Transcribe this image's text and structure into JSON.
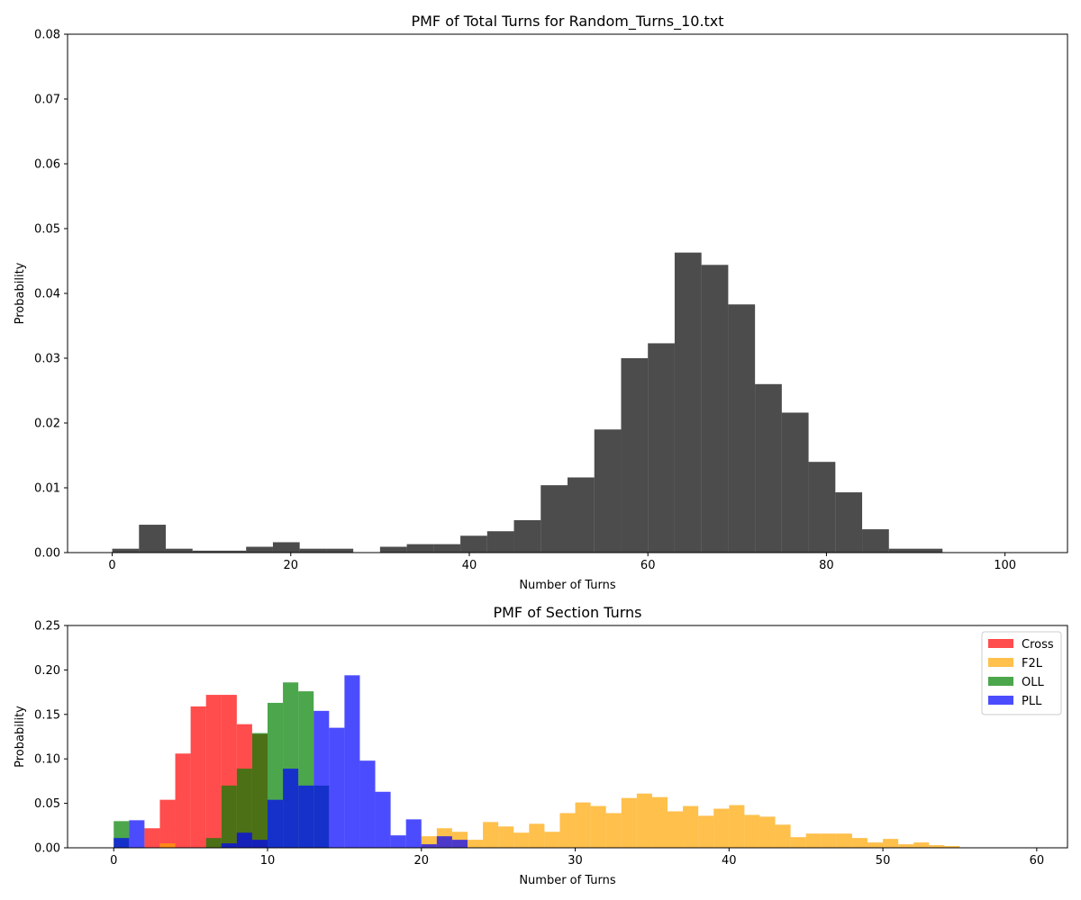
{
  "chart_data": [
    {
      "type": "bar",
      "title": "PMF of Total Turns for Random_Turns_10.txt",
      "xlabel": "Number of Turns",
      "ylabel": "Probability",
      "xlim": [
        -5,
        107
      ],
      "ylim": [
        0,
        0.08
      ],
      "xticks": [
        0,
        20,
        40,
        60,
        80,
        100
      ],
      "yticks": [
        0.0,
        0.01,
        0.02,
        0.03,
        0.04,
        0.05,
        0.06,
        0.07,
        0.08
      ],
      "grid": false,
      "series": [
        {
          "color": "#000000",
          "opacity": 0.7,
          "bin_width": 3,
          "bins": [
            [
              0,
              0.0006
            ],
            [
              3,
              0.0043
            ],
            [
              6,
              0.0006
            ],
            [
              9,
              0.0003
            ],
            [
              12,
              0.0003
            ],
            [
              15,
              0.0009
            ],
            [
              18,
              0.0016
            ],
            [
              21,
              0.0006
            ],
            [
              24,
              0.0006
            ],
            [
              27,
              0.0
            ],
            [
              30,
              0.0009
            ],
            [
              33,
              0.0013
            ],
            [
              36,
              0.0013
            ],
            [
              39,
              0.0026
            ],
            [
              42,
              0.0033
            ],
            [
              45,
              0.005
            ],
            [
              48,
              0.0104
            ],
            [
              51,
              0.0116
            ],
            [
              54,
              0.019
            ],
            [
              57,
              0.03
            ],
            [
              60,
              0.0323
            ],
            [
              63,
              0.0463
            ],
            [
              66,
              0.0444
            ],
            [
              69,
              0.0383
            ],
            [
              72,
              0.026
            ],
            [
              75,
              0.0216
            ],
            [
              78,
              0.014
            ],
            [
              81,
              0.0093
            ],
            [
              84,
              0.0036
            ],
            [
              87,
              0.0006
            ],
            [
              90,
              0.0006
            ]
          ]
        }
      ]
    },
    {
      "type": "bar",
      "title": "PMF of Section Turns",
      "xlabel": "Number of Turns",
      "ylabel": "Probability",
      "xlim": [
        -3,
        62
      ],
      "ylim": [
        0,
        0.25
      ],
      "xticks": [
        0,
        10,
        20,
        30,
        40,
        50,
        60
      ],
      "yticks": [
        0.0,
        0.05,
        0.1,
        0.15,
        0.2,
        0.25
      ],
      "grid": false,
      "legend": {
        "position": "top-right"
      },
      "series": [
        {
          "name": "Cross",
          "color": "#ff0000",
          "opacity": 0.7,
          "bin_width": 1,
          "bins": [
            [
              0,
              0.0
            ],
            [
              1,
              0.0
            ],
            [
              2,
              0.022
            ],
            [
              3,
              0.054
            ],
            [
              4,
              0.106
            ],
            [
              5,
              0.159
            ],
            [
              6,
              0.172
            ],
            [
              7,
              0.172
            ],
            [
              8,
              0.139
            ],
            [
              9,
              0.128
            ]
          ]
        },
        {
          "name": "F2L",
          "color": "#ffa500",
          "opacity": 0.7,
          "bin_width": 1,
          "bins": [
            [
              3,
              0.005
            ],
            [
              20,
              0.013
            ],
            [
              21,
              0.022
            ],
            [
              22,
              0.018
            ],
            [
              23,
              0.009
            ],
            [
              24,
              0.029
            ],
            [
              25,
              0.024
            ],
            [
              26,
              0.017
            ],
            [
              27,
              0.027
            ],
            [
              28,
              0.018
            ],
            [
              29,
              0.039
            ],
            [
              30,
              0.051
            ],
            [
              31,
              0.047
            ],
            [
              32,
              0.039
            ],
            [
              33,
              0.056
            ],
            [
              34,
              0.061
            ],
            [
              35,
              0.057
            ],
            [
              36,
              0.041
            ],
            [
              37,
              0.047
            ],
            [
              38,
              0.036
            ],
            [
              39,
              0.044
            ],
            [
              40,
              0.048
            ],
            [
              41,
              0.037
            ],
            [
              42,
              0.035
            ],
            [
              43,
              0.026
            ],
            [
              44,
              0.012
            ],
            [
              45,
              0.016
            ],
            [
              46,
              0.016
            ],
            [
              47,
              0.016
            ],
            [
              48,
              0.011
            ],
            [
              49,
              0.006
            ],
            [
              50,
              0.01
            ],
            [
              51,
              0.004
            ],
            [
              52,
              0.006
            ],
            [
              53,
              0.003
            ],
            [
              54,
              0.002
            ]
          ]
        },
        {
          "name": "OLL",
          "color": "#008000",
          "opacity": 0.7,
          "bin_width": 1,
          "bins": [
            [
              0,
              0.03
            ],
            [
              6,
              0.011
            ],
            [
              7,
              0.07
            ],
            [
              8,
              0.089
            ],
            [
              9,
              0.129
            ],
            [
              10,
              0.163
            ],
            [
              11,
              0.186
            ],
            [
              12,
              0.176
            ],
            [
              13,
              0.07
            ]
          ]
        },
        {
          "name": "PLL",
          "color": "#0000ff",
          "opacity": 0.7,
          "bin_width": 1,
          "bins": [
            [
              0,
              0.011
            ],
            [
              1,
              0.031
            ],
            [
              7,
              0.005
            ],
            [
              8,
              0.017
            ],
            [
              9,
              0.009
            ],
            [
              10,
              0.054
            ],
            [
              11,
              0.089
            ],
            [
              12,
              0.07
            ],
            [
              13,
              0.154
            ],
            [
              14,
              0.135
            ],
            [
              15,
              0.194
            ],
            [
              16,
              0.098
            ],
            [
              17,
              0.063
            ],
            [
              18,
              0.014
            ],
            [
              19,
              0.032
            ],
            [
              20,
              0.004
            ],
            [
              21,
              0.013
            ],
            [
              22,
              0.009
            ]
          ]
        }
      ]
    }
  ]
}
